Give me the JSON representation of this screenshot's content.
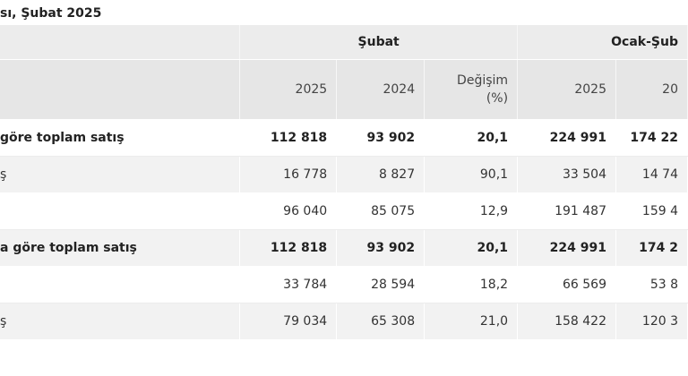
{
  "title": "sı, Şubat 2025",
  "header": {
    "group1": "Şubat",
    "group2": "Ocak-Şub",
    "sub": {
      "y2025": "2025",
      "y2024": "2024",
      "change_line1": "Değişim",
      "change_line2": "(%)",
      "cum_y2025": "2025",
      "cum_y2024": "20"
    }
  },
  "rows": [
    {
      "label": "göre toplam satış",
      "v2025": "112 818",
      "v2024": "93 902",
      "change": "20,1",
      "cum2025": "224 991",
      "cum2024": "174 22"
    },
    {
      "label": "ş",
      "v2025": "16 778",
      "v2024": "8 827",
      "change": "90,1",
      "cum2025": "33 504",
      "cum2024": "14 74"
    },
    {
      "label": "",
      "v2025": "96 040",
      "v2024": "85 075",
      "change": "12,9",
      "cum2025": "191 487",
      "cum2024": "159 4"
    },
    {
      "label": "a göre toplam satış",
      "v2025": "112 818",
      "v2024": "93 902",
      "change": "20,1",
      "cum2025": "224 991",
      "cum2024": "174 2"
    },
    {
      "label": "",
      "v2025": "33 784",
      "v2024": "28 594",
      "change": "18,2",
      "cum2025": "66 569",
      "cum2024": "53 8"
    },
    {
      "label": "ş",
      "v2025": "79 034",
      "v2024": "65 308",
      "change": "21,0",
      "cum2025": "158 422",
      "cum2024": "120 3"
    }
  ]
}
